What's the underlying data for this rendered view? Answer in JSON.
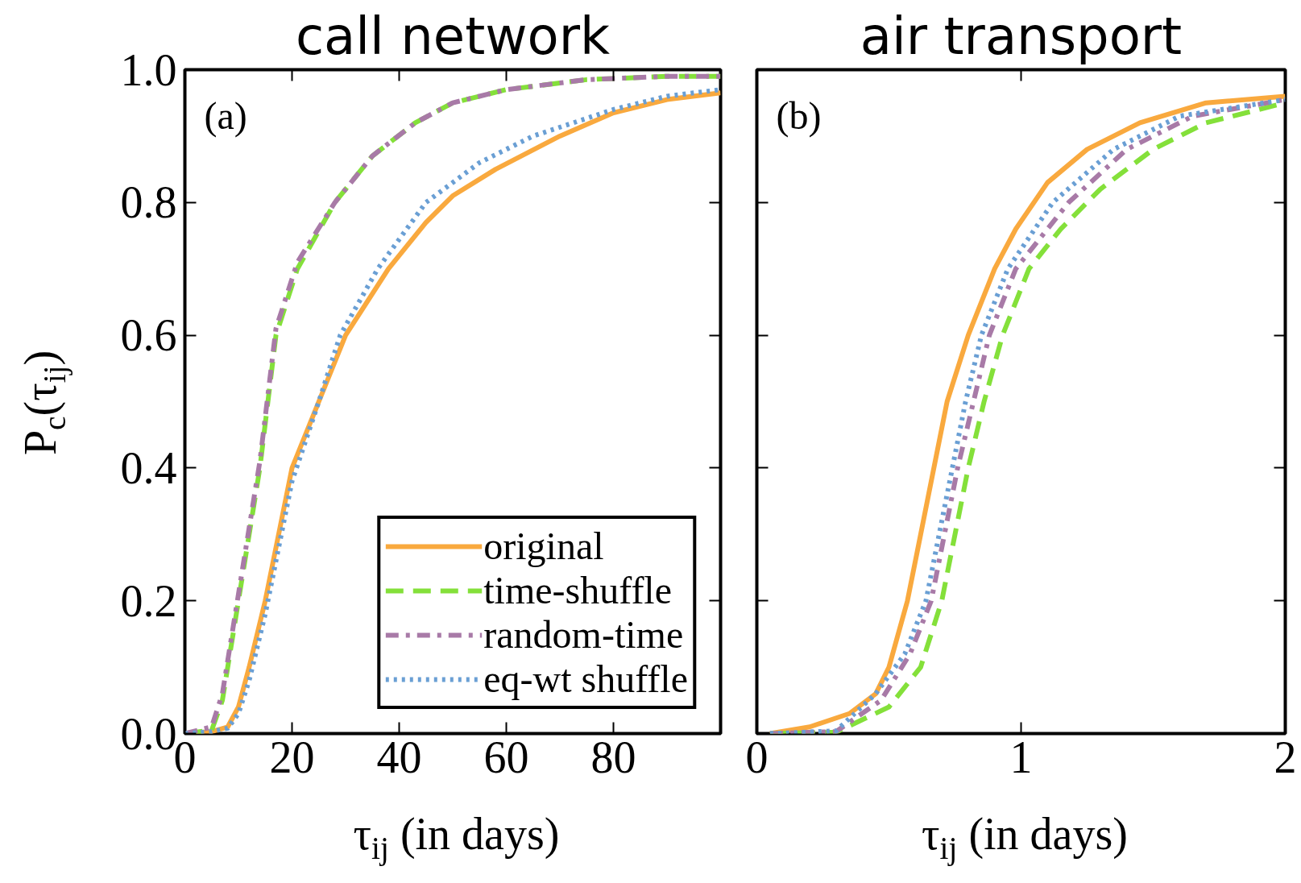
{
  "chart_data": [
    {
      "type": "line",
      "title": "call network",
      "xlabel": "τ$_{ij}$ (in days)",
      "ylabel": "P$_{c}$(τ$_{ij}$)",
      "annotations": [
        "(a)"
      ],
      "xlim": [
        0,
        100
      ],
      "xticks": [
        0,
        20,
        40,
        60,
        80
      ],
      "ylim": [
        0,
        1
      ],
      "yticks": [
        {
          "value": 0,
          "label": "0.0"
        },
        0.2,
        0.4,
        0.6,
        0.8,
        {
          "value": 1,
          "label": "1.0"
        }
      ],
      "grid": false,
      "legend": "bottom right",
      "series": [
        {
          "name": "original",
          "color": "#f9a93e",
          "line_style": "solid",
          "x": [
            0,
            5,
            8,
            10,
            12,
            15,
            18,
            20,
            25,
            30,
            38,
            45,
            50,
            58,
            70,
            80,
            90,
            100
          ],
          "values": [
            0,
            0.003,
            0.01,
            0.04,
            0.1,
            0.2,
            0.32,
            0.4,
            0.5,
            0.6,
            0.7,
            0.77,
            0.81,
            0.85,
            0.9,
            0.935,
            0.955,
            0.965
          ]
        },
        {
          "name": "time-shuffle",
          "color": "#84e03a",
          "line_style": "dashed",
          "x": [
            0,
            5,
            7,
            9,
            10,
            12,
            14,
            17,
            21,
            28,
            35,
            43,
            50,
            60,
            75,
            90,
            100
          ],
          "values": [
            0,
            0.005,
            0.05,
            0.15,
            0.2,
            0.3,
            0.4,
            0.6,
            0.7,
            0.8,
            0.87,
            0.92,
            0.95,
            0.97,
            0.985,
            0.99,
            0.99
          ]
        },
        {
          "name": "random-time",
          "color": "#a87aa7",
          "line_style": "dashdot",
          "x": [
            0,
            5,
            7,
            9,
            10,
            12,
            14,
            17,
            21,
            28,
            35,
            43,
            50,
            60,
            75,
            90,
            100
          ],
          "values": [
            0,
            0.01,
            0.06,
            0.16,
            0.21,
            0.31,
            0.41,
            0.61,
            0.71,
            0.8,
            0.87,
            0.92,
            0.95,
            0.97,
            0.985,
            0.99,
            0.99
          ]
        },
        {
          "name": "eq-wt shuffle",
          "color": "#6a9fd4",
          "line_style": "dotted",
          "x": [
            0,
            5,
            8,
            10,
            12,
            15,
            18,
            20,
            25,
            29,
            36,
            45,
            55,
            65,
            80,
            90,
            100
          ],
          "values": [
            0,
            0.003,
            0.008,
            0.03,
            0.08,
            0.18,
            0.3,
            0.38,
            0.5,
            0.6,
            0.7,
            0.8,
            0.86,
            0.9,
            0.94,
            0.96,
            0.97
          ]
        }
      ]
    },
    {
      "type": "line",
      "title": "air transport",
      "xlabel": "τ$_{ij}$ (in days)",
      "annotations": [
        "(b)"
      ],
      "xlim": [
        0,
        2
      ],
      "xticks": [
        0,
        1,
        2
      ],
      "ylim": [
        0,
        1
      ],
      "yticks": [
        {
          "value": 0,
          "label": null
        },
        {
          "value": 0.2,
          "label": null
        },
        {
          "value": 0.4,
          "label": null
        },
        {
          "value": 0.6,
          "label": null
        },
        {
          "value": 0.8,
          "label": null
        },
        {
          "value": 1,
          "label": null
        }
      ],
      "grid": false,
      "tick_labels": "x",
      "series": [
        {
          "color": "#f9a93e",
          "line_style": "solid",
          "x": [
            0.05,
            0.2,
            0.35,
            0.45,
            0.5,
            0.57,
            0.62,
            0.67,
            0.72,
            0.8,
            0.9,
            0.98,
            1.1,
            1.25,
            1.45,
            1.7,
            2
          ],
          "values": [
            0,
            0.01,
            0.03,
            0.06,
            0.1,
            0.2,
            0.3,
            0.4,
            0.5,
            0.6,
            0.7,
            0.76,
            0.83,
            0.88,
            0.92,
            0.95,
            0.96
          ]
        },
        {
          "color": "#84e03a",
          "line_style": "dashed",
          "x": [
            0.05,
            0.3,
            0.5,
            0.62,
            0.7,
            0.75,
            0.8,
            0.86,
            0.93,
            1.03,
            1.15,
            1.3,
            1.5,
            1.7,
            2
          ],
          "values": [
            0,
            0.002,
            0.04,
            0.1,
            0.2,
            0.3,
            0.4,
            0.5,
            0.6,
            0.7,
            0.76,
            0.82,
            0.88,
            0.92,
            0.95
          ]
        },
        {
          "color": "#a87aa7",
          "line_style": "dashdot",
          "x": [
            0.05,
            0.3,
            0.47,
            0.58,
            0.66,
            0.71,
            0.76,
            0.82,
            0.88,
            0.98,
            1.18,
            1.4,
            1.65,
            2
          ],
          "values": [
            0,
            0.003,
            0.05,
            0.12,
            0.2,
            0.3,
            0.4,
            0.5,
            0.6,
            0.7,
            0.8,
            0.88,
            0.93,
            0.955
          ]
        },
        {
          "color": "#6a9fd4",
          "line_style": "dotted",
          "x": [
            0.05,
            0.3,
            0.45,
            0.56,
            0.64,
            0.69,
            0.74,
            0.79,
            0.85,
            0.95,
            1.12,
            1.35,
            1.6,
            2
          ],
          "values": [
            0,
            0.004,
            0.06,
            0.12,
            0.2,
            0.3,
            0.4,
            0.5,
            0.6,
            0.7,
            0.8,
            0.88,
            0.93,
            0.955
          ]
        }
      ]
    }
  ]
}
